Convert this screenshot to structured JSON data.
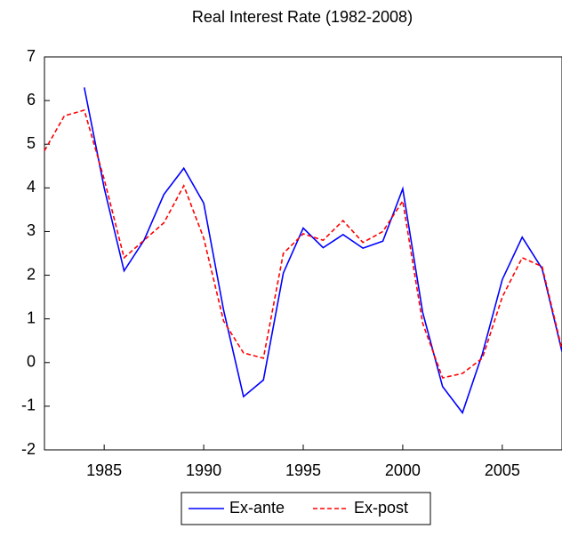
{
  "chart_data": {
    "type": "line",
    "title": "Real Interest Rate (1982-2008)",
    "x": [
      1982,
      1983,
      1984,
      1985,
      1986,
      1987,
      1988,
      1989,
      1990,
      1991,
      1992,
      1993,
      1994,
      1995,
      1996,
      1997,
      1998,
      1999,
      2000,
      2001,
      2002,
      2003,
      2004,
      2005,
      2006,
      2007,
      2008
    ],
    "series": [
      {
        "name": "Ex-ante",
        "color": "#0000ff",
        "dash": "solid",
        "values": [
          null,
          null,
          6.3,
          4.0,
          2.1,
          2.8,
          3.85,
          4.45,
          3.65,
          1.2,
          -0.78,
          -0.4,
          2.05,
          3.08,
          2.63,
          2.93,
          2.62,
          2.78,
          3.98,
          1.15,
          -0.55,
          -1.15,
          0.2,
          1.9,
          2.87,
          2.15,
          0.25
        ]
      },
      {
        "name": "Ex-post",
        "color": "#ff0000",
        "dash": "dashed",
        "values": [
          4.85,
          5.65,
          5.78,
          4.2,
          2.4,
          2.8,
          3.2,
          4.05,
          2.85,
          0.95,
          0.22,
          0.1,
          2.5,
          2.95,
          2.8,
          3.25,
          2.75,
          3.0,
          3.7,
          0.9,
          -0.35,
          -0.25,
          0.1,
          1.5,
          2.4,
          2.2,
          0.3
        ]
      }
    ],
    "xlim": [
      1982,
      2008
    ],
    "xticks": [
      1985,
      1990,
      1995,
      2000,
      2005
    ],
    "ylim": [
      -2,
      7
    ],
    "yticks": [
      -2,
      -1,
      0,
      1,
      2,
      3,
      4,
      5,
      6,
      7
    ],
    "legend": "bottom"
  }
}
